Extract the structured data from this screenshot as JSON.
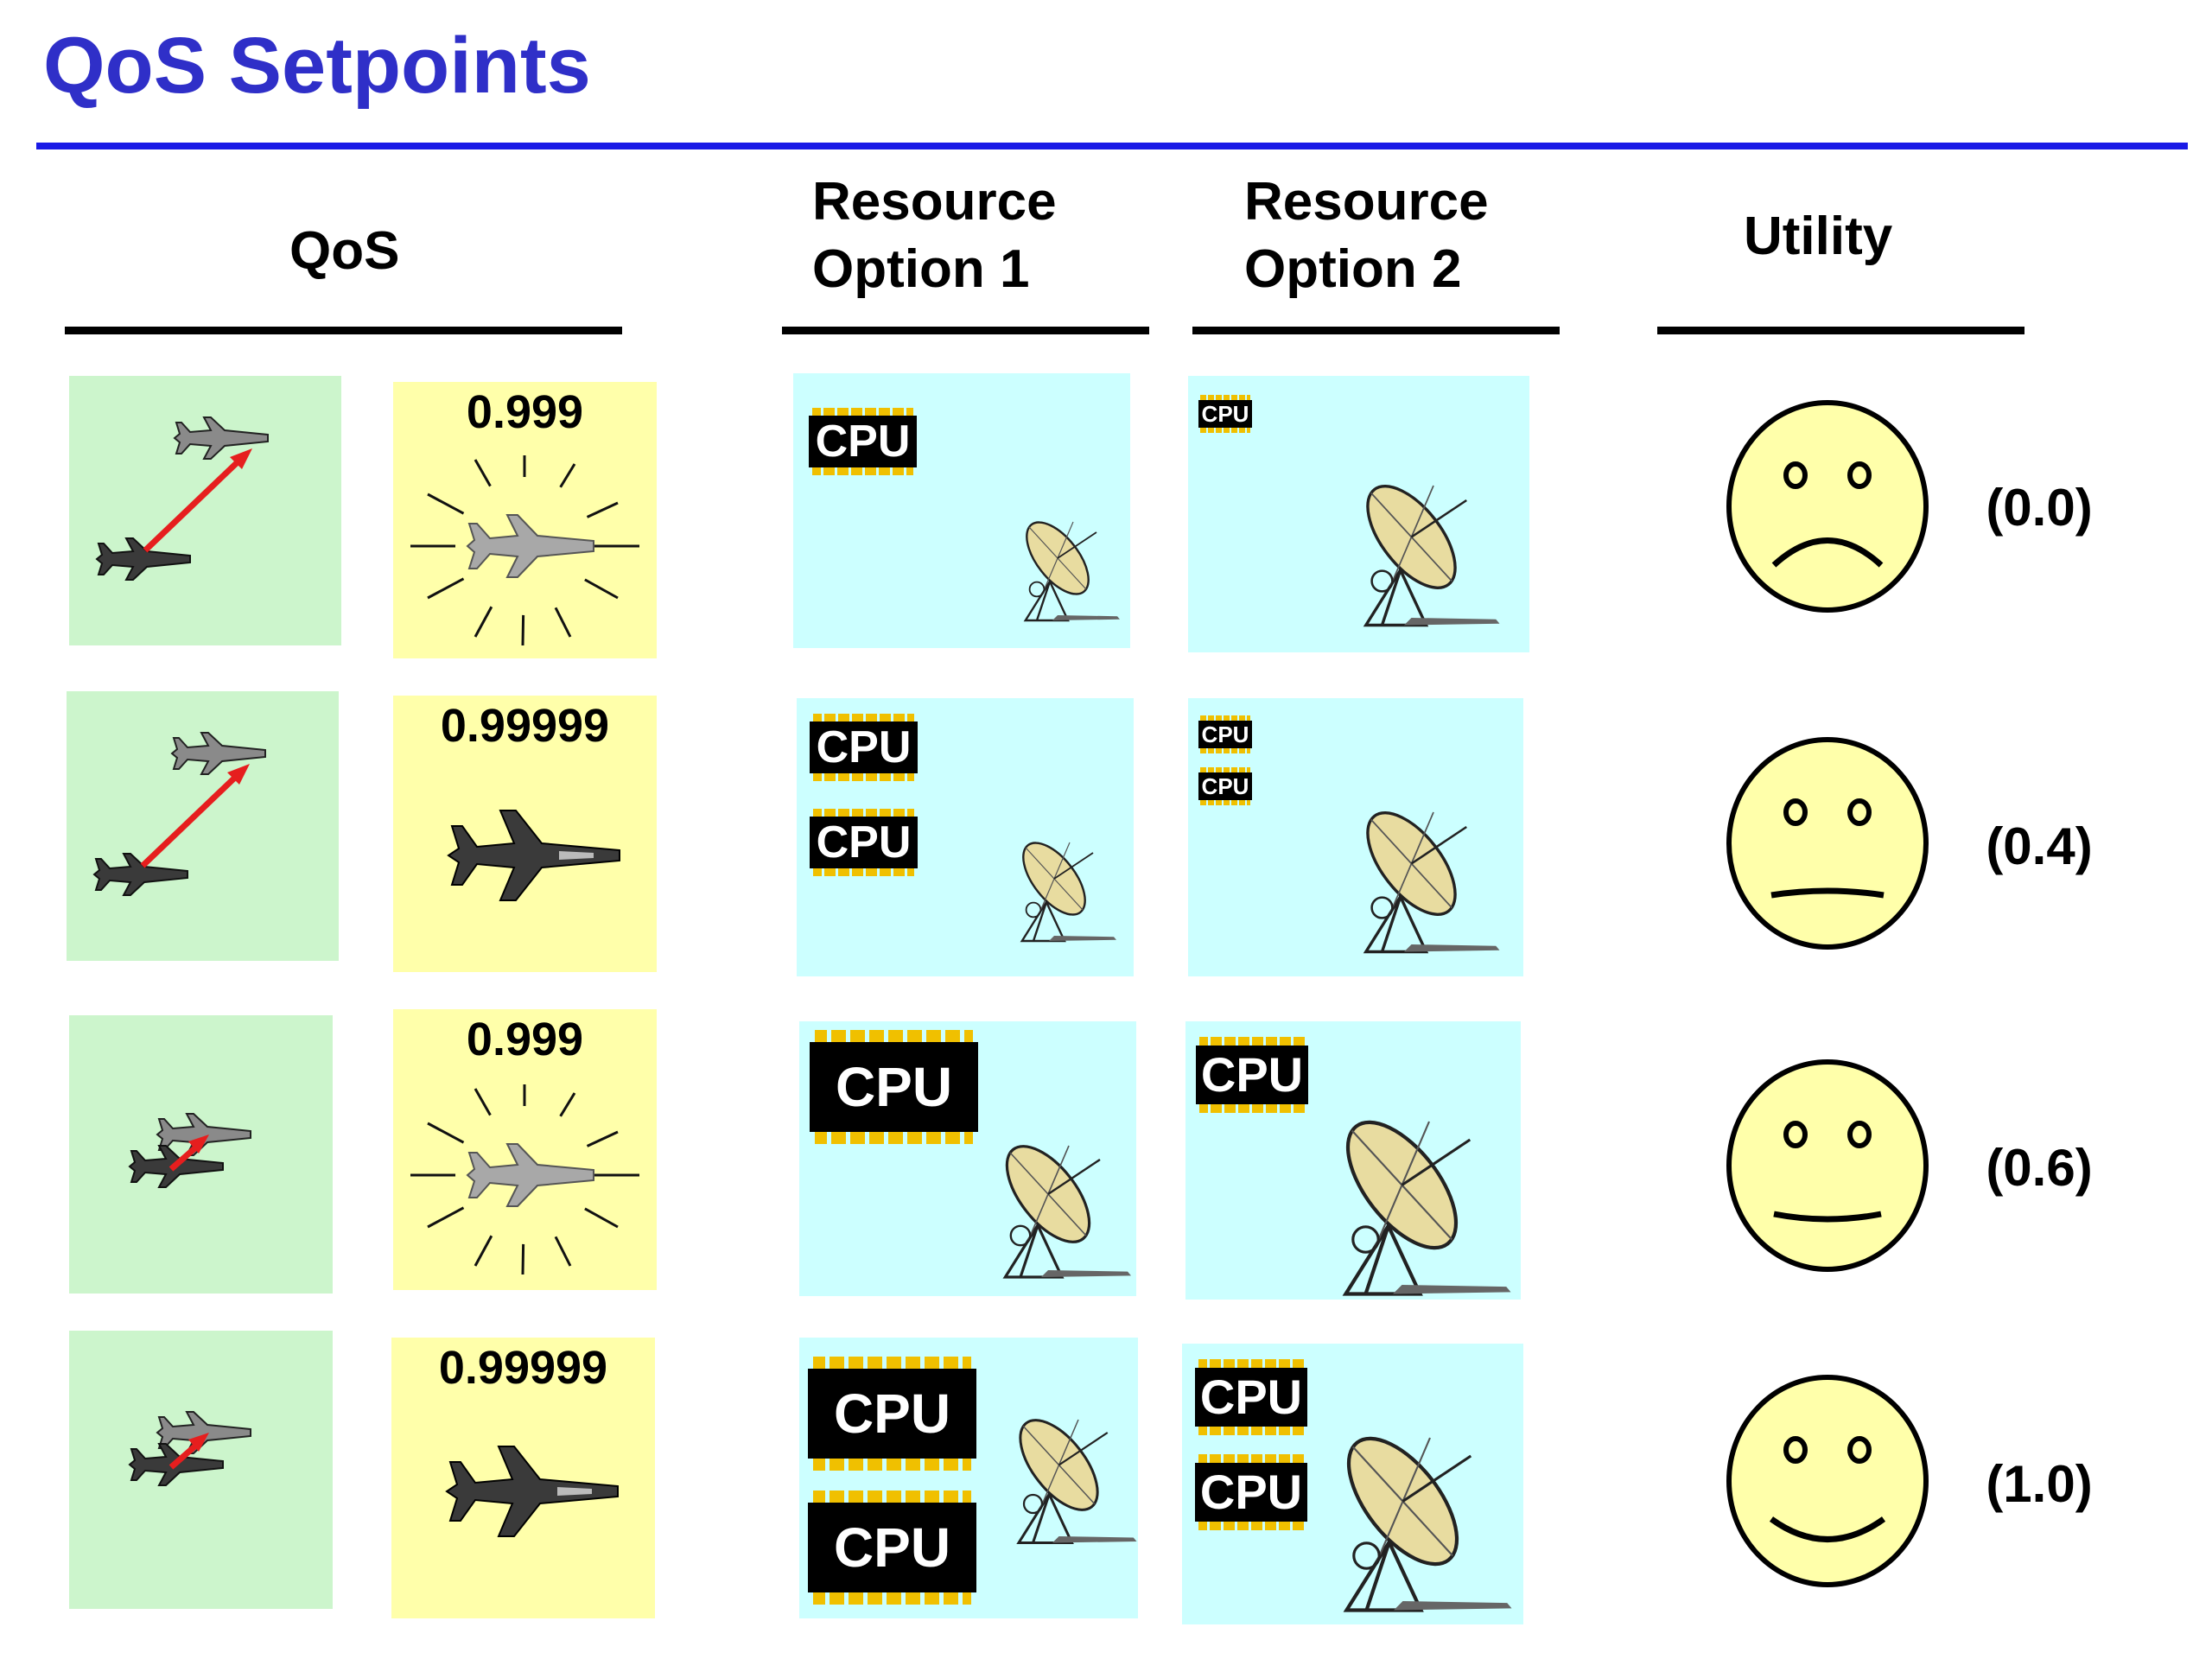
{
  "title": "QoS Setpoints",
  "headers": {
    "qos": "QoS",
    "resource_option_1": "Resource\nOption 1",
    "resource_option_2": "Resource\nOption 2",
    "utility": "Utility"
  },
  "colors": {
    "title": "#2f2fc8",
    "title_rule": "#1a1ae6",
    "qos_panel": "#ccf5cc",
    "value_panel": "#ffffaa",
    "resource_panel": "#ccffff",
    "face_fill": "#ffffaa",
    "chip_pins": "#f0c000",
    "arrow": "#e61e1e"
  },
  "chip_label": "CPU",
  "rows": [
    {
      "qos_icon": "two-jets-far-apart-icon",
      "qos_value": "0.999",
      "qos_value_icon": "exploding-jet-icon",
      "option_1": {
        "cpus": 1,
        "dish": "small"
      },
      "option_2": {
        "cpus": 1,
        "cpu_size": "tiny",
        "dish": "medium"
      },
      "face": "frown-icon",
      "utility": "(0.0)"
    },
    {
      "qos_icon": "two-jets-far-apart-icon",
      "qos_value": "0.99999",
      "qos_value_icon": "jet-icon",
      "option_1": {
        "cpus": 2,
        "dish": "small"
      },
      "option_2": {
        "cpus": 2,
        "cpu_size": "tiny",
        "dish": "medium"
      },
      "face": "neutral-face-icon",
      "utility": "(0.4)"
    },
    {
      "qos_icon": "two-jets-close-icon",
      "qos_value": "0.999",
      "qos_value_icon": "exploding-jet-icon",
      "option_1": {
        "cpus": 1,
        "dish": "medium"
      },
      "option_2": {
        "cpus": 1,
        "dish": "large"
      },
      "face": "slight-smile-icon",
      "utility": "(0.6)"
    },
    {
      "qos_icon": "two-jets-close-icon",
      "qos_value": "0.99999",
      "qos_value_icon": "jet-icon",
      "option_1": {
        "cpus": 2,
        "dish": "medium"
      },
      "option_2": {
        "cpus": 2,
        "dish": "large"
      },
      "face": "smile-icon",
      "utility": "(1.0)"
    }
  ]
}
